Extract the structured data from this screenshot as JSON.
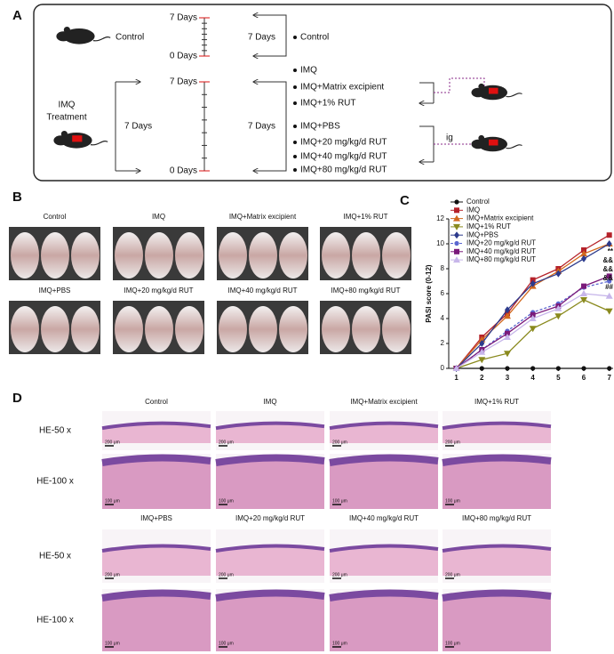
{
  "panel_a": {
    "label": "A",
    "control": {
      "mouse_label": "Control",
      "timeline_top": "7 Days",
      "timeline_bottom": "0 Days",
      "duration": "7 Days",
      "groups": [
        "Control"
      ]
    },
    "treatment": {
      "mouse_label": [
        "IMQ",
        "Treatment"
      ],
      "duration_left": "7 Days",
      "timeline_top": "7 Days",
      "timeline_bottom": "0 Days",
      "duration_right": "7 Days",
      "topical_groups": [
        "IMQ",
        "IMQ+Matrix excipient",
        "IMQ+1% RUT"
      ],
      "oral_groups": [
        "IMQ+PBS",
        "IMQ+20 mg/kg/d RUT",
        "IMQ+40 mg/kg/d RUT",
        "IMQ+80 mg/kg/d RUT"
      ],
      "route": "ig"
    }
  },
  "panel_b": {
    "label": "B",
    "groups": [
      "Control",
      "IMQ",
      "IMQ+Matrix excipient",
      "IMQ+1% RUT",
      "IMQ+PBS",
      "IMQ+20 mg/kg/d RUT",
      "IMQ+40 mg/kg/d RUT",
      "IMQ+80 mg/kg/d RUT"
    ]
  },
  "chart_data": {
    "type": "line",
    "label": "C",
    "ylabel": "PASI score (0-12)",
    "x": [
      1,
      2,
      3,
      4,
      5,
      6,
      7
    ],
    "xlim": [
      0.7,
      7.15
    ],
    "xticks": [
      1,
      2,
      3,
      4,
      5,
      6,
      7
    ],
    "ylim": [
      0,
      12
    ],
    "yticks": [
      0,
      2,
      4,
      6,
      8,
      10,
      12
    ],
    "series": [
      {
        "name": "Control",
        "color": "#111111",
        "marker": "circle",
        "dash": false,
        "values": [
          0,
          0,
          0,
          0,
          0,
          0,
          0
        ]
      },
      {
        "name": "IMQ",
        "color": "#b5222a",
        "marker": "square",
        "dash": false,
        "values": [
          0,
          2.5,
          4.4,
          7.1,
          8.0,
          9.5,
          10.7
        ]
      },
      {
        "name": "IMQ+Matrix excipient",
        "color": "#d2691e",
        "marker": "triangle-up",
        "dash": false,
        "values": [
          0,
          2.3,
          4.2,
          6.6,
          7.8,
          9.2,
          10.0
        ]
      },
      {
        "name": "IMQ+1% RUT",
        "color": "#8a8a1e",
        "marker": "triangle-down",
        "dash": false,
        "values": [
          0,
          0.7,
          1.2,
          3.2,
          4.2,
          5.5,
          4.6
        ]
      },
      {
        "name": "IMQ+PBS",
        "color": "#2c3a8c",
        "marker": "diamond",
        "dash": false,
        "values": [
          0,
          2.0,
          4.7,
          6.8,
          7.6,
          8.8,
          10.0
        ]
      },
      {
        "name": "IMQ+20 mg/kg/d RUT",
        "color": "#5a66d0",
        "marker": "circle",
        "dash": true,
        "values": [
          0,
          1.5,
          3.0,
          4.5,
          5.2,
          6.5,
          7.0
        ]
      },
      {
        "name": "IMQ+40 mg/kg/d RUT",
        "color": "#7a1a7a",
        "marker": "square",
        "dash": false,
        "values": [
          0,
          1.5,
          2.8,
          4.3,
          5.0,
          6.6,
          7.4
        ]
      },
      {
        "name": "IMQ+80 mg/kg/d RUT",
        "color": "#c7b6ea",
        "marker": "triangle-up",
        "dash": false,
        "values": [
          0,
          1.3,
          2.5,
          4.0,
          4.8,
          6.0,
          5.8
        ]
      }
    ],
    "annotations": [
      "**",
      "&&",
      "&&",
      "&&",
      "##"
    ]
  },
  "panel_d": {
    "label": "D",
    "rows": [
      "HE-50 x",
      "HE-100 x"
    ],
    "scale_bars": [
      "200 μm",
      "100 μm"
    ],
    "groups": [
      "Control",
      "IMQ",
      "IMQ+Matrix excipient",
      "IMQ+1% RUT",
      "IMQ+PBS",
      "IMQ+20 mg/kg/d RUT",
      "IMQ+40 mg/kg/d RUT",
      "IMQ+80 mg/kg/d RUT"
    ]
  }
}
